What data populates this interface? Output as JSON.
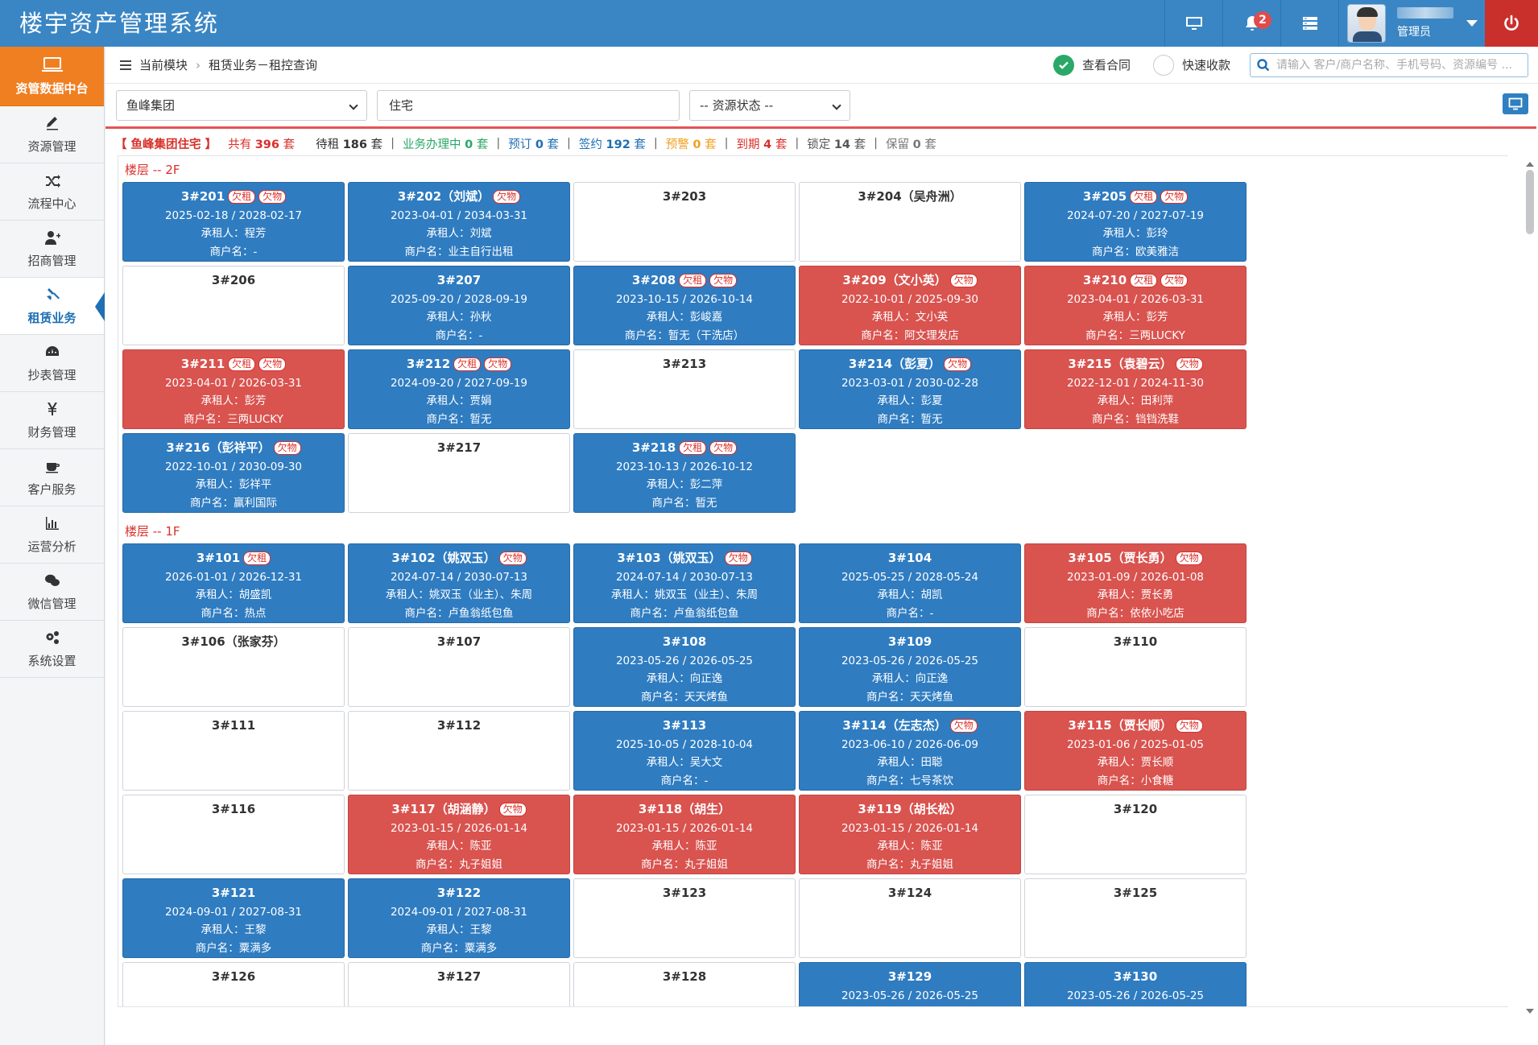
{
  "app": {
    "title": "楼宇资产管理系统",
    "notification_count": "2",
    "user_role": "管理员"
  },
  "sidebar": {
    "top_label": "资管数据中台",
    "items": [
      {
        "label": "资源管理",
        "icon": "edit-icon"
      },
      {
        "label": "流程中心",
        "icon": "shuffle-icon"
      },
      {
        "label": "招商管理",
        "icon": "add-user-icon"
      },
      {
        "label": "租赁业务",
        "icon": "hammer-icon"
      },
      {
        "label": "抄表管理",
        "icon": "dashboard-icon"
      },
      {
        "label": "财务管理",
        "icon": "yen-icon"
      },
      {
        "label": "客户服务",
        "icon": "coffee-icon"
      },
      {
        "label": "运营分析",
        "icon": "bar-chart-icon"
      },
      {
        "label": "微信管理",
        "icon": "wechat-icon"
      },
      {
        "label": "系统设置",
        "icon": "gears-icon"
      }
    ],
    "active_index": 3
  },
  "breadcrumb": {
    "module": "当前模块",
    "path": "租赁业务－租控查询"
  },
  "toolbar": {
    "view_contract_label": "查看合同",
    "quick_collect_label": "快速收款",
    "search_placeholder": "请输入 客户/商户名称、手机号码、资源编号 ..."
  },
  "filters": {
    "group": "鱼峰集团",
    "type": "住宅",
    "status": "-- 资源状态 --"
  },
  "stats": {
    "name": "【 鱼峰集团住宅 】",
    "total_label": "共有",
    "total": "396",
    "unit": "套",
    "items": [
      {
        "label": "待租",
        "value": "186",
        "color": "#333333"
      },
      {
        "label": "业务办理中",
        "value": "0",
        "color": "#2aa867"
      },
      {
        "label": "预订",
        "value": "0",
        "color": "#1e6fb3"
      },
      {
        "label": "签约",
        "value": "192",
        "color": "#1e6fb3"
      },
      {
        "label": "预警",
        "value": "0",
        "color": "#f0a020"
      },
      {
        "label": "到期",
        "value": "4",
        "color": "#d9302a"
      },
      {
        "label": "锁定",
        "value": "14",
        "color": "#555555"
      },
      {
        "label": "保留",
        "value": "0",
        "color": "#777777"
      }
    ]
  },
  "tags": {
    "rent": "欠租",
    "property": "欠物"
  },
  "colors": {
    "signed": "#2f7cc1",
    "expired": "#d9534f",
    "header": "#3a86c4",
    "sidebar_top": "#f07f22"
  },
  "floors": [
    {
      "label": "楼层 -- 2F",
      "units": [
        {
          "code": "3#201",
          "status": "blue",
          "rent_due": true,
          "prop_due": true,
          "period": "2025-02-18 / 2028-02-17",
          "tenant": "承租人：程芳",
          "shop": "商户名：-"
        },
        {
          "code": "3#202（刘斌）",
          "status": "blue",
          "rent_due": false,
          "prop_due": true,
          "period": "2023-04-01 / 2034-03-31",
          "tenant": "承租人：刘斌",
          "shop": "商户名：业主自行出租"
        },
        {
          "code": "3#203",
          "status": "empty"
        },
        {
          "code": "3#204（吴舟洲）",
          "status": "empty"
        },
        {
          "code": "3#205",
          "status": "blue",
          "rent_due": true,
          "prop_due": true,
          "period": "2024-07-20 / 2027-07-19",
          "tenant": "承租人：彭玲",
          "shop": "商户名：欧美雅洁"
        },
        {
          "code": "3#206",
          "status": "empty"
        },
        {
          "code": "3#207",
          "status": "blue",
          "rent_due": false,
          "prop_due": false,
          "period": "2025-09-20 / 2028-09-19",
          "tenant": "承租人：孙秋",
          "shop": "商户名：-"
        },
        {
          "code": "3#208",
          "status": "blue",
          "rent_due": true,
          "prop_due": true,
          "period": "2023-10-15 / 2026-10-14",
          "tenant": "承租人：彭峻嘉",
          "shop": "商户名：暂无（干洗店）"
        },
        {
          "code": "3#209（文小英）",
          "status": "red",
          "rent_due": false,
          "prop_due": true,
          "period": "2022-10-01 / 2025-09-30",
          "tenant": "承租人：文小英",
          "shop": "商户名：阿文理发店"
        },
        {
          "code": "3#210",
          "status": "red",
          "rent_due": true,
          "prop_due": true,
          "period": "2023-04-01 / 2026-03-31",
          "tenant": "承租人：彭芳",
          "shop": "商户名：三两LUCKY"
        },
        {
          "code": "3#211",
          "status": "red",
          "rent_due": true,
          "prop_due": true,
          "period": "2023-04-01 / 2026-03-31",
          "tenant": "承租人：彭芳",
          "shop": "商户名：三两LUCKY"
        },
        {
          "code": "3#212",
          "status": "blue",
          "rent_due": true,
          "prop_due": true,
          "period": "2024-09-20 / 2027-09-19",
          "tenant": "承租人：贾娟",
          "shop": "商户名：暂无"
        },
        {
          "code": "3#213",
          "status": "empty"
        },
        {
          "code": "3#214（彭夏）",
          "status": "blue",
          "rent_due": false,
          "prop_due": true,
          "period": "2023-03-01 / 2030-02-28",
          "tenant": "承租人：彭夏",
          "shop": "商户名：暂无"
        },
        {
          "code": "3#215（袁碧云）",
          "status": "red",
          "rent_due": false,
          "prop_due": true,
          "period": "2022-12-01 / 2024-11-30",
          "tenant": "承租人：田利萍",
          "shop": "商户名：铛铛洗鞋"
        },
        {
          "code": "3#216（彭祥平）",
          "status": "blue",
          "rent_due": false,
          "prop_due": true,
          "period": "2022-10-01 / 2030-09-30",
          "tenant": "承租人：彭祥平",
          "shop": "商户名：赢利国际"
        },
        {
          "code": "3#217",
          "status": "empty"
        },
        {
          "code": "3#218",
          "status": "blue",
          "rent_due": true,
          "prop_due": true,
          "period": "2023-10-13 / 2026-10-12",
          "tenant": "承租人：彭二萍",
          "shop": "商户名：暂无"
        }
      ]
    },
    {
      "label": "楼层 -- 1F",
      "units": [
        {
          "code": "3#101",
          "status": "blue",
          "rent_due": true,
          "prop_due": false,
          "period": "2026-01-01 / 2026-12-31",
          "tenant": "承租人：胡盛凯",
          "shop": "商户名：热点"
        },
        {
          "code": "3#102（姚双玉）",
          "status": "blue",
          "rent_due": false,
          "prop_due": true,
          "period": "2024-07-14 / 2030-07-13",
          "tenant": "承租人：姚双玉（业主）、朱周",
          "shop": "商户名：卢鱼翁纸包鱼"
        },
        {
          "code": "3#103（姚双玉）",
          "status": "blue",
          "rent_due": false,
          "prop_due": true,
          "period": "2024-07-14 / 2030-07-13",
          "tenant": "承租人：姚双玉（业主）、朱周",
          "shop": "商户名：卢鱼翁纸包鱼"
        },
        {
          "code": "3#104",
          "status": "blue",
          "rent_due": false,
          "prop_due": false,
          "period": "2025-05-25 / 2028-05-24",
          "tenant": "承租人：胡凯",
          "shop": "商户名：-"
        },
        {
          "code": "3#105（贾长勇）",
          "status": "red",
          "rent_due": false,
          "prop_due": true,
          "period": "2023-01-09 / 2026-01-08",
          "tenant": "承租人：贾长勇",
          "shop": "商户名：依依小吃店"
        },
        {
          "code": "3#106（张家芬）",
          "status": "empty"
        },
        {
          "code": "3#107",
          "status": "empty"
        },
        {
          "code": "3#108",
          "status": "blue",
          "rent_due": false,
          "prop_due": false,
          "period": "2023-05-26 / 2026-05-25",
          "tenant": "承租人：向正逸",
          "shop": "商户名：天天烤鱼"
        },
        {
          "code": "3#109",
          "status": "blue",
          "rent_due": false,
          "prop_due": false,
          "period": "2023-05-26 / 2026-05-25",
          "tenant": "承租人：向正逸",
          "shop": "商户名：天天烤鱼"
        },
        {
          "code": "3#110",
          "status": "empty"
        },
        {
          "code": "3#111",
          "status": "empty"
        },
        {
          "code": "3#112",
          "status": "empty"
        },
        {
          "code": "3#113",
          "status": "blue",
          "rent_due": false,
          "prop_due": false,
          "period": "2025-10-05 / 2028-10-04",
          "tenant": "承租人：吴大文",
          "shop": "商户名：-"
        },
        {
          "code": "3#114（左志杰）",
          "status": "blue",
          "rent_due": false,
          "prop_due": true,
          "period": "2023-06-10 / 2026-06-09",
          "tenant": "承租人：田聪",
          "shop": "商户名：七号茶饮"
        },
        {
          "code": "3#115（贾长顺）",
          "status": "red",
          "rent_due": false,
          "prop_due": true,
          "period": "2023-01-06 / 2025-01-05",
          "tenant": "承租人：贾长顺",
          "shop": "商户名：小食糖"
        },
        {
          "code": "3#116",
          "status": "empty"
        },
        {
          "code": "3#117（胡涵静）",
          "status": "red",
          "rent_due": false,
          "prop_due": true,
          "period": "2023-01-15 / 2026-01-14",
          "tenant": "承租人：陈亚",
          "shop": "商户名：丸子姐姐"
        },
        {
          "code": "3#118（胡生）",
          "status": "red",
          "rent_due": false,
          "prop_due": false,
          "period": "2023-01-15 / 2026-01-14",
          "tenant": "承租人：陈亚",
          "shop": "商户名：丸子姐姐"
        },
        {
          "code": "3#119（胡长松）",
          "status": "red",
          "rent_due": false,
          "prop_due": false,
          "period": "2023-01-15 / 2026-01-14",
          "tenant": "承租人：陈亚",
          "shop": "商户名：丸子姐姐"
        },
        {
          "code": "3#120",
          "status": "empty"
        },
        {
          "code": "3#121",
          "status": "blue",
          "rent_due": false,
          "prop_due": false,
          "period": "2024-09-01 / 2027-08-31",
          "tenant": "承租人：王黎",
          "shop": "商户名：粟满多"
        },
        {
          "code": "3#122",
          "status": "blue",
          "rent_due": false,
          "prop_due": false,
          "period": "2024-09-01 / 2027-08-31",
          "tenant": "承租人：王黎",
          "shop": "商户名：粟满多"
        },
        {
          "code": "3#123",
          "status": "empty"
        },
        {
          "code": "3#124",
          "status": "empty"
        },
        {
          "code": "3#125",
          "status": "empty"
        },
        {
          "code": "3#126",
          "status": "empty"
        },
        {
          "code": "3#127",
          "status": "empty"
        },
        {
          "code": "3#128",
          "status": "empty"
        },
        {
          "code": "3#129",
          "status": "blue",
          "rent_due": false,
          "prop_due": false,
          "period": "2023-05-26 / 2026-05-25",
          "tenant": "",
          "shop": ""
        },
        {
          "code": "3#130",
          "status": "blue",
          "rent_due": false,
          "prop_due": false,
          "period": "2023-05-26 / 2026-05-25",
          "tenant": "",
          "shop": ""
        }
      ]
    }
  ]
}
